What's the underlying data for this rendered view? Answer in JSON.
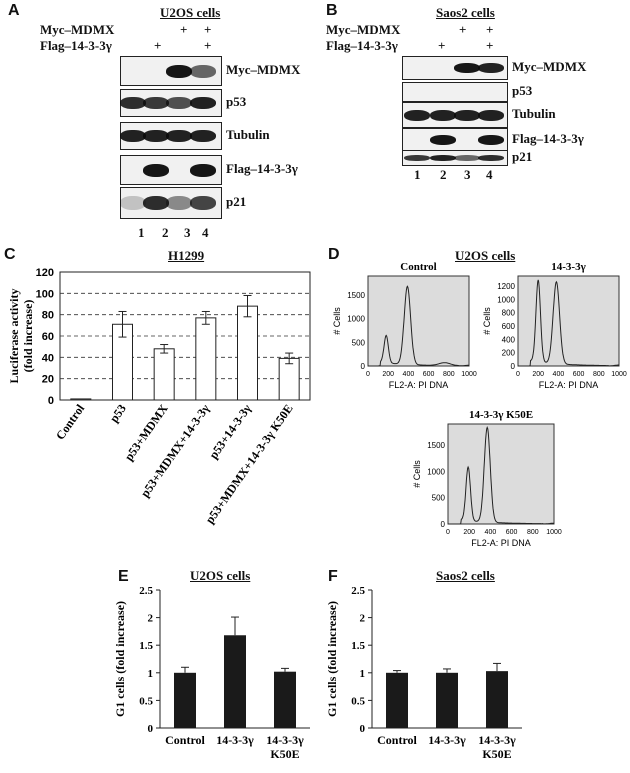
{
  "panelA": {
    "letter": "A",
    "title": "U2OS cells",
    "treat1": "Myc–MDMX",
    "treat2": "Flag–14-3-3γ",
    "plus": "+",
    "rows": [
      "Myc–MDMX",
      "p53",
      "Tubulin",
      "Flag–14-3-3γ",
      "p21"
    ],
    "lanes": [
      "1",
      "2",
      "3",
      "4"
    ]
  },
  "panelB": {
    "letter": "B",
    "title": "Saos2 cells",
    "treat1": "Myc–MDMX",
    "treat2": "Flag–14-3-3γ",
    "plus": "+",
    "rows": [
      "Myc–MDMX",
      "p53",
      "Tubulin",
      "Flag–14-3-3γ",
      "p21"
    ],
    "lanes": [
      "1",
      "2",
      "3",
      "4"
    ]
  },
  "panelC": {
    "letter": "C",
    "chart_data": {
      "type": "bar",
      "title": "H1299",
      "ylabel": "Luciferase activity (fold increase)",
      "ylim": [
        0,
        120
      ],
      "yticks": [
        0,
        20,
        40,
        60,
        80,
        100,
        120
      ],
      "grid": true,
      "categories": [
        "Control",
        "p53",
        "p53+MDMX",
        "p53+MDMX+14-3-3γ",
        "p53+14-3-3γ",
        "p53+MDMX+14-3-3γ K50E"
      ],
      "values": [
        1,
        71,
        48,
        77,
        88,
        39
      ],
      "errors": [
        0,
        12,
        4,
        6,
        10,
        5
      ]
    }
  },
  "panelD": {
    "letter": "D",
    "title": "U2OS cells",
    "plots": [
      {
        "title": "Control",
        "ylabel": "# Cells",
        "xlabel": "FL2-A: PI DNA",
        "yticks": [
          "0",
          "500",
          "1000",
          "1500"
        ],
        "xticks": [
          "0",
          "200",
          "400",
          "600",
          "800",
          "1000"
        ]
      },
      {
        "title": "14-3-3γ",
        "ylabel": "# Cells",
        "xlabel": "FL2-A: PI DNA",
        "yticks": [
          "0",
          "200",
          "400",
          "600",
          "800",
          "1000",
          "1200"
        ],
        "xticks": [
          "0",
          "200",
          "400",
          "600",
          "800",
          "1000"
        ]
      },
      {
        "title": "14-3-3γ K50E",
        "ylabel": "# Cells",
        "xlabel": "FL2-A: PI DNA",
        "yticks": [
          "0",
          "500",
          "1000",
          "1500"
        ],
        "xticks": [
          "0",
          "200",
          "400",
          "600",
          "800",
          "1000"
        ]
      }
    ]
  },
  "panelE": {
    "letter": "E",
    "chart_data": {
      "type": "bar",
      "title": "U2OS cells",
      "ylabel": "G1 cells (fold increase)",
      "ylim": [
        0,
        2.5
      ],
      "yticks": [
        "0",
        "0.5",
        "1",
        "1.5",
        "2",
        "2.5"
      ],
      "categories": [
        "Control",
        "14-3-3γ",
        "14-3-3γ K50E"
      ],
      "values": [
        1.0,
        1.68,
        1.02
      ],
      "errors": [
        0.1,
        0.33,
        0.06
      ]
    }
  },
  "panelF": {
    "letter": "F",
    "chart_data": {
      "type": "bar",
      "title": "Saos2 cells",
      "ylabel": "G1 cells (fold increase)",
      "ylim": [
        0,
        2.5
      ],
      "yticks": [
        "0",
        "0.5",
        "1",
        "1.5",
        "2",
        "2.5"
      ],
      "categories": [
        "Control",
        "14-3-3γ",
        "14-3-3γ K50E"
      ],
      "values": [
        1.0,
        1.0,
        1.03
      ],
      "errors": [
        0.04,
        0.07,
        0.14
      ]
    }
  }
}
